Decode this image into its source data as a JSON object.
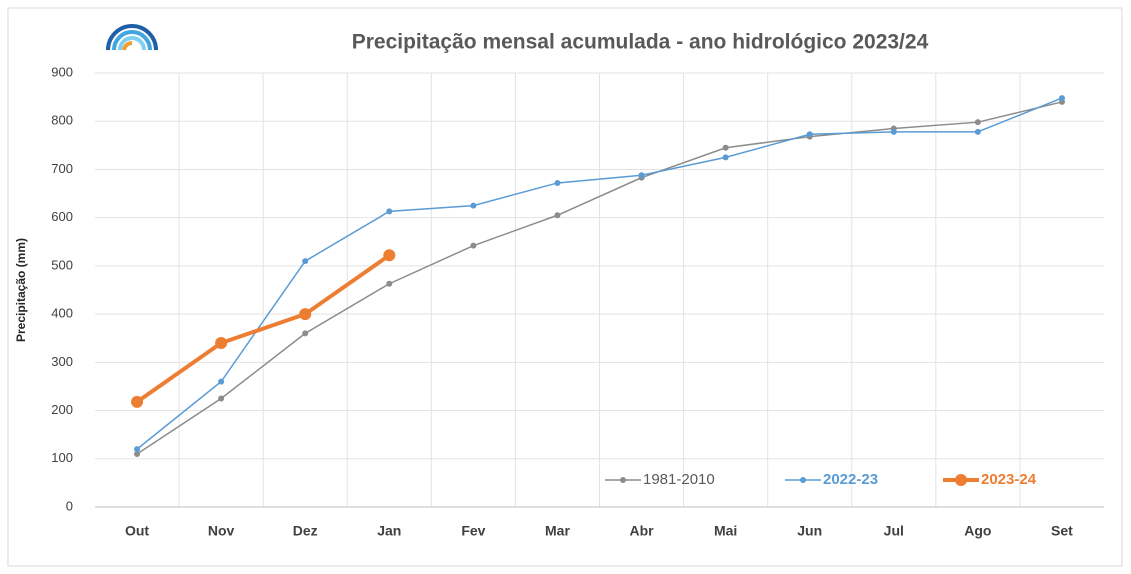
{
  "chart_data": {
    "type": "line",
    "title": "Precipitação  mensal acumulada  - ano hidrológico  2023/24",
    "y_label": "Precipitação (mm)",
    "categories": [
      "Out",
      "Nov",
      "Dez",
      "Jan",
      "Fev",
      "Mar",
      "Abr",
      "Mai",
      "Jun",
      "Jul",
      "Ago",
      "Set"
    ],
    "series": [
      {
        "name": "1981-2010",
        "color": "#8c8c8c",
        "values": [
          110,
          225,
          360,
          463,
          542,
          605,
          683,
          745,
          768,
          785,
          798,
          840
        ]
      },
      {
        "name": "2022-23",
        "color": "#5b9bd5",
        "values": [
          120,
          260,
          510,
          613,
          625,
          672,
          688,
          725,
          773,
          778,
          778,
          848
        ]
      },
      {
        "name": "2023-24",
        "color": "#ed7d31",
        "values": [
          218,
          340,
          400,
          522,
          null,
          null,
          null,
          null,
          null,
          null,
          null,
          null
        ]
      }
    ],
    "ylim": [
      0,
      900
    ],
    "yticks": [
      0,
      100,
      200,
      300,
      400,
      500,
      600,
      700,
      800,
      900
    ],
    "grid": true,
    "legend": "bottom-right"
  }
}
